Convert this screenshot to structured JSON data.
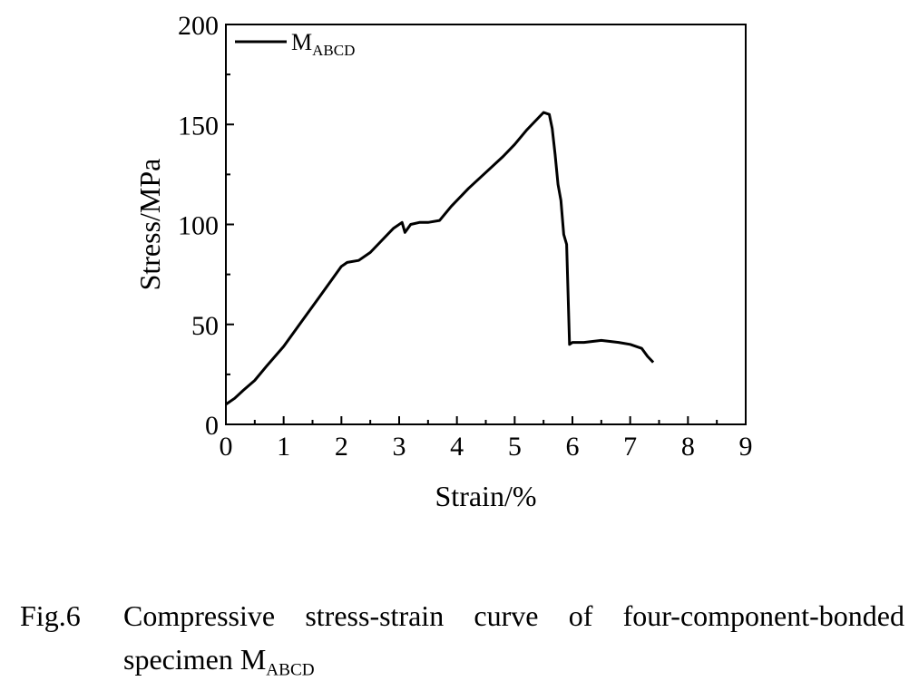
{
  "chart_data": {
    "type": "line",
    "xlabel": "Strain/%",
    "ylabel": "Stress/MPa",
    "xlim": [
      0,
      9
    ],
    "ylim": [
      0,
      200
    ],
    "x_ticks": [
      0,
      1,
      2,
      3,
      4,
      5,
      6,
      7,
      8,
      9
    ],
    "y_ticks": [
      0,
      50,
      100,
      150,
      200
    ],
    "grid": false,
    "legend_position": "top-left",
    "series": [
      {
        "name": "M",
        "name_sub": "ABCD",
        "color": "#000000",
        "x": [
          0,
          0.15,
          0.3,
          0.5,
          0.7,
          1.0,
          1.3,
          1.6,
          1.85,
          2.0,
          2.1,
          2.3,
          2.5,
          2.7,
          2.9,
          3.05,
          3.1,
          3.2,
          3.35,
          3.5,
          3.7,
          3.9,
          4.2,
          4.5,
          4.8,
          5.0,
          5.2,
          5.4,
          5.5,
          5.6,
          5.65,
          5.7,
          5.75,
          5.8,
          5.85,
          5.9,
          5.95,
          6.0,
          6.2,
          6.5,
          6.8,
          7.0,
          7.2,
          7.3,
          7.4
        ],
        "y": [
          10,
          13,
          17,
          22,
          29,
          39,
          51,
          63,
          73,
          79,
          81,
          82,
          86,
          92,
          98,
          101,
          96,
          100,
          101,
          101,
          102,
          109,
          118,
          126,
          134,
          140,
          147,
          153,
          156,
          155,
          148,
          135,
          120,
          112,
          95,
          90,
          40,
          41,
          41,
          42,
          41,
          40,
          38,
          34,
          31
        ]
      }
    ]
  },
  "caption": {
    "figure_number": "Fig.6",
    "text_line1": "Compressive stress-strain curve of four-component-bonded",
    "text_line2": "specimen M",
    "text_line2_sub": "ABCD"
  }
}
